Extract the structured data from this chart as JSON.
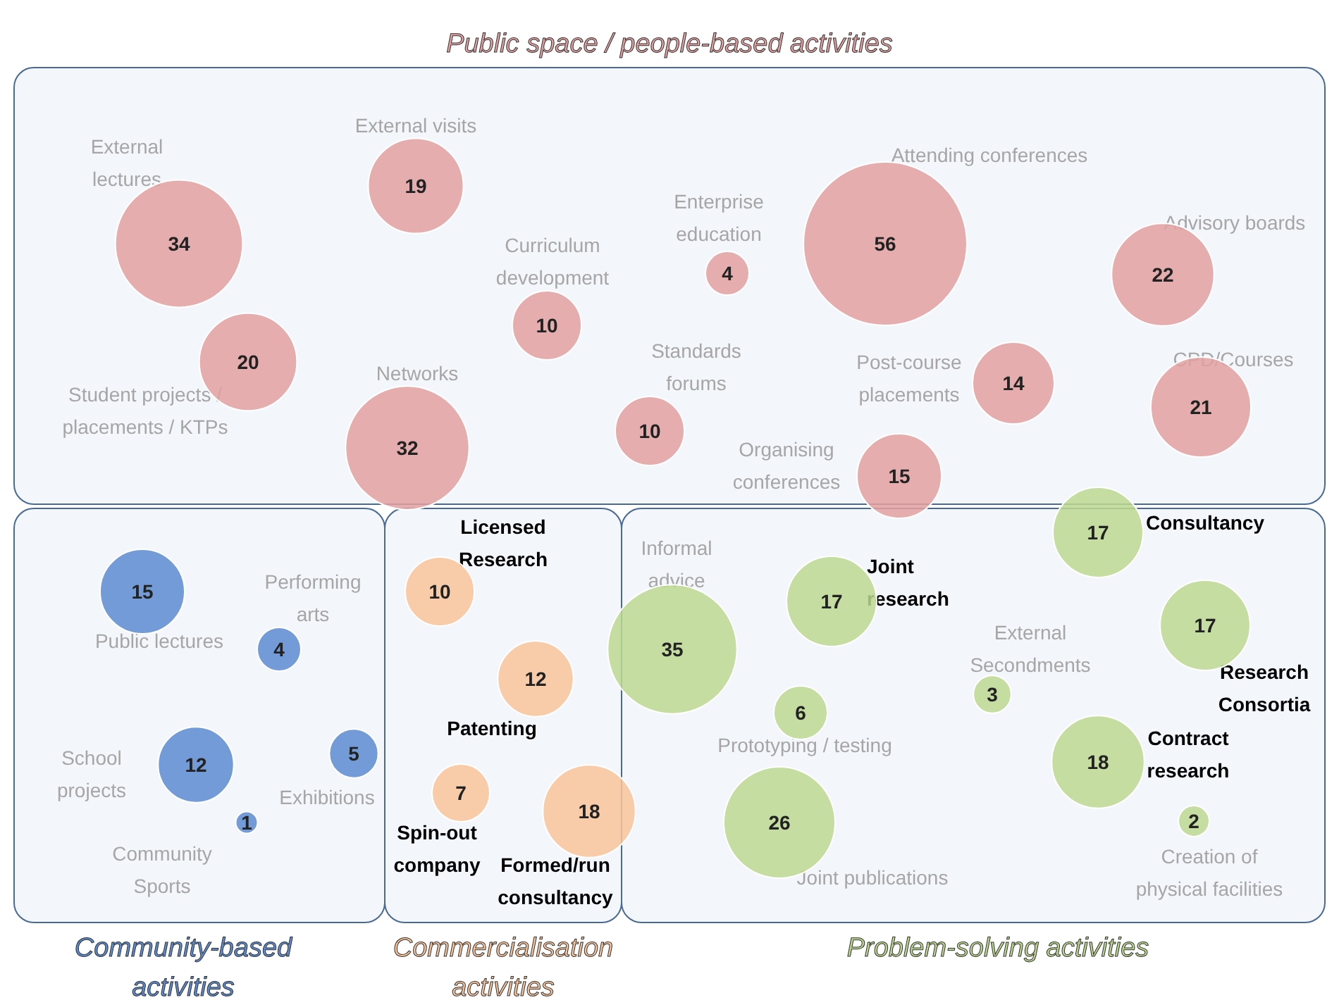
{
  "chart_data": {
    "type": "other",
    "categories": [
      "External lectures",
      "External visits",
      "Student projects / placements / KTPs",
      "Curriculum development",
      "Networks",
      "Enterprise education",
      "Standards forums",
      "Attending conferences",
      "Post-course placements",
      "Organising conferences",
      "Advisory boards",
      "CPD/Courses",
      "Public lectures",
      "Performing arts",
      "School projects",
      "Exhibitions",
      "Community Sports",
      "Licensed Research",
      "Patenting",
      "Spin-out company",
      "Formed/run consultancy",
      "Informal advice",
      "Joint research",
      "Consultancy",
      "External Secondments",
      "Research Consortia",
      "Prototyping / testing",
      "Contract research",
      "Joint publications",
      "Creation of physical facilities"
    ],
    "series": [
      {
        "name": "Public space / people-based activities",
        "color": "#e3a0a0",
        "values": [
          34,
          19,
          20,
          10,
          32,
          4,
          10,
          56,
          14,
          15,
          22,
          21,
          null,
          null,
          null,
          null,
          null,
          null,
          null,
          null,
          null,
          null,
          null,
          null,
          null,
          null,
          null,
          null,
          null,
          null
        ]
      },
      {
        "name": "Community-based activities",
        "color": "#5b8bd0",
        "values": [
          null,
          null,
          null,
          null,
          null,
          null,
          null,
          null,
          null,
          null,
          null,
          null,
          15,
          4,
          12,
          5,
          1,
          null,
          null,
          null,
          null,
          null,
          null,
          null,
          null,
          null,
          null,
          null,
          null,
          null
        ]
      },
      {
        "name": "Commercialisation activities",
        "color": "#f9c49a",
        "values": [
          null,
          null,
          null,
          null,
          null,
          null,
          null,
          null,
          null,
          null,
          null,
          null,
          null,
          null,
          null,
          null,
          null,
          10,
          12,
          7,
          18,
          null,
          null,
          null,
          null,
          null,
          null,
          null,
          null,
          null
        ]
      },
      {
        "name": "Problem-solving activities",
        "color": "#bcd88f",
        "values": [
          null,
          null,
          null,
          null,
          null,
          null,
          null,
          null,
          null,
          null,
          null,
          null,
          null,
          null,
          null,
          null,
          null,
          null,
          null,
          null,
          null,
          35,
          17,
          17,
          3,
          17,
          6,
          18,
          26,
          2
        ]
      }
    ],
    "data_labels": true
  }
}
